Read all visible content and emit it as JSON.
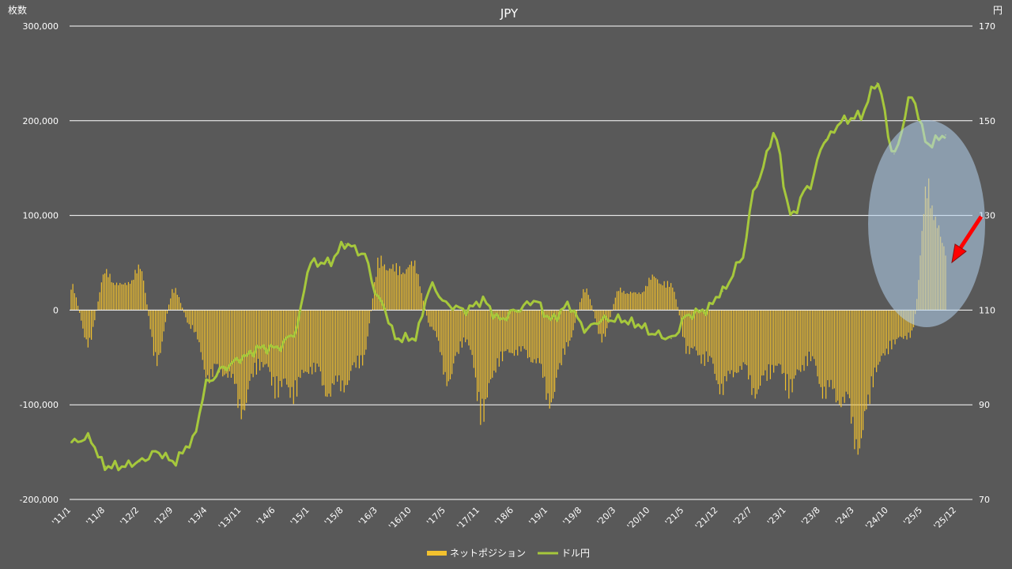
{
  "chart_data": {
    "type": "bar+line",
    "title": "JPY",
    "left_axis": {
      "label": "枚数",
      "ylim": [
        -200000,
        300000
      ],
      "ticks": [
        "300,000",
        "200,000",
        "100,000",
        "0",
        "-100,000",
        "-200,000"
      ]
    },
    "right_axis": {
      "label": "円",
      "ylim": [
        70,
        170
      ],
      "ticks": [
        "170",
        "150",
        "130",
        "110",
        "90",
        "70"
      ]
    },
    "x_tick_labels": [
      "'11/1",
      "'11/8",
      "'12/2",
      "'12/9",
      "'13/4",
      "'13/11",
      "'14/6",
      "'15/1",
      "'15/8",
      "'16/3",
      "'16/10",
      "'17/5",
      "'17/11",
      "'18/6",
      "'19/1",
      "'19/8",
      "'20/3",
      "'20/10",
      "'21/5",
      "'21/12",
      "'22/7",
      "'23/1",
      "'23/8",
      "'24/3",
      "'24/10",
      "'25/5",
      "'25/12"
    ],
    "grid": "horizontal",
    "legend_position": "bottom",
    "series": [
      {
        "name": "ネットポジション",
        "type": "bar",
        "axis": "left",
        "color": "#f2c12e",
        "x": [
          "'11/1",
          "'11/4",
          "'11/8",
          "'11/11",
          "'12/2",
          "'12/5",
          "'12/9",
          "'12/12",
          "'13/4",
          "'13/7",
          "'13/11",
          "'14/2",
          "'14/6",
          "'14/9",
          "'15/1",
          "'15/4",
          "'15/8",
          "'15/11",
          "'16/3",
          "'16/6",
          "'16/10",
          "'17/1",
          "'17/5",
          "'17/8",
          "'17/11",
          "'18/2",
          "'18/6",
          "'18/9",
          "'19/1",
          "'19/4",
          "'19/8",
          "'19/11",
          "'20/3",
          "'20/6",
          "'20/10",
          "'21/1",
          "'21/5",
          "'21/8",
          "'21/12",
          "'22/3",
          "'22/7",
          "'22/10",
          "'23/1",
          "'23/4",
          "'23/8",
          "'23/11",
          "'24/3",
          "'24/6",
          "'24/10",
          "'25/1",
          "'25/5",
          "'25/8"
        ],
        "values": [
          30000,
          -40000,
          45000,
          30000,
          50000,
          -60000,
          25000,
          -20000,
          -80000,
          -75000,
          -120000,
          -65000,
          -95000,
          -100000,
          -70000,
          -100000,
          -90000,
          -60000,
          60000,
          50000,
          55000,
          -20000,
          -85000,
          -35000,
          -125000,
          -60000,
          -50000,
          -60000,
          -110000,
          -40000,
          25000,
          -35000,
          25000,
          20000,
          40000,
          30000,
          -50000,
          -60000,
          -95000,
          -70000,
          -100000,
          -70000,
          -95000,
          -60000,
          -100000,
          -110000,
          -165000,
          -70000,
          -40000,
          -30000,
          150000,
          70000
        ]
      },
      {
        "name": "ドル円",
        "type": "line",
        "axis": "right",
        "color": "#a6c83c",
        "x": [
          "'11/1",
          "'11/4",
          "'11/8",
          "'11/11",
          "'12/2",
          "'12/5",
          "'12/9",
          "'12/12",
          "'13/4",
          "'13/7",
          "'13/11",
          "'14/2",
          "'14/6",
          "'14/9",
          "'15/1",
          "'15/4",
          "'15/8",
          "'15/11",
          "'16/3",
          "'16/6",
          "'16/10",
          "'17/1",
          "'17/5",
          "'17/8",
          "'17/11",
          "'18/2",
          "'18/6",
          "'18/9",
          "'19/1",
          "'19/4",
          "'19/8",
          "'19/11",
          "'20/3",
          "'20/6",
          "'20/10",
          "'21/1",
          "'21/5",
          "'21/8",
          "'21/12",
          "'22/3",
          "'22/7",
          "'22/10",
          "'23/1",
          "'23/4",
          "'23/8",
          "'23/11",
          "'24/3",
          "'24/6",
          "'24/10",
          "'25/1",
          "'25/5",
          "'25/8"
        ],
        "values": [
          82,
          83,
          77,
          77,
          78,
          80,
          78,
          82,
          95,
          98,
          100,
          102,
          102,
          105,
          120,
          120,
          124,
          122,
          112,
          104,
          104,
          115,
          111,
          110,
          112,
          108,
          110,
          112,
          108,
          111,
          106,
          108,
          108,
          107,
          105,
          104,
          109,
          110,
          114,
          120,
          137,
          147,
          130,
          136,
          146,
          150,
          151,
          158,
          143,
          155,
          145,
          147
        ]
      }
    ],
    "annotations": [
      {
        "type": "ellipse-highlight",
        "region": "'24/10 – '25/8"
      },
      {
        "type": "arrow",
        "color": "#ff0000",
        "direction": "down-left"
      }
    ]
  }
}
